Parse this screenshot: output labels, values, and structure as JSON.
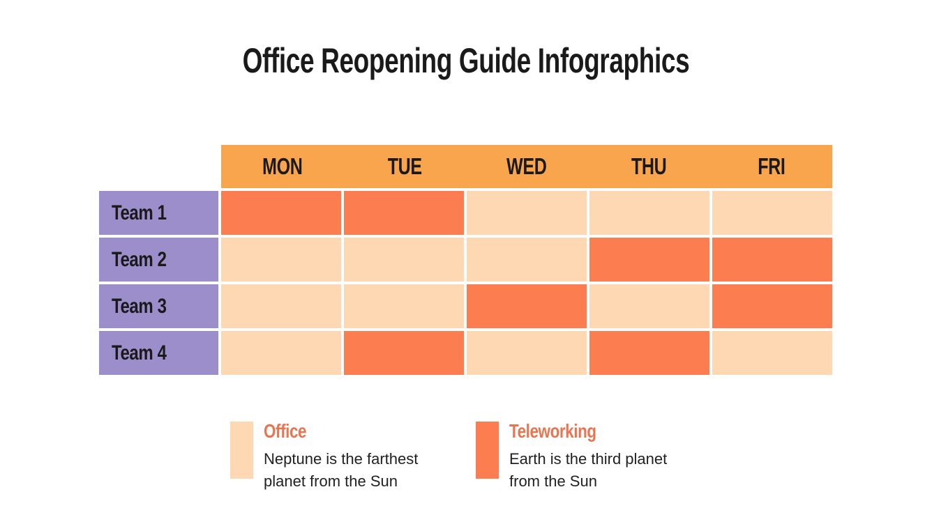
{
  "title": "Office Reopening Guide Infographics",
  "colors": {
    "background": "#FFFFFF",
    "header_bg": "#F9A54E",
    "team_bg": "#9B8ECB",
    "office": "#FDD8B3",
    "teleworking": "#FB7D50",
    "legend_title": "#EB7450",
    "text": "#1A1A1A"
  },
  "chart_data": {
    "type": "table",
    "title": "Office Reopening Guide Infographics",
    "columns": [
      "MON",
      "TUE",
      "WED",
      "THU",
      "FRI"
    ],
    "rows": [
      "Team 1",
      "Team 2",
      "Team 3",
      "Team 4"
    ],
    "cells": [
      [
        "teleworking",
        "teleworking",
        "office",
        "office",
        "office"
      ],
      [
        "office",
        "office",
        "office",
        "teleworking",
        "teleworking"
      ],
      [
        "office",
        "office",
        "teleworking",
        "office",
        "teleworking"
      ],
      [
        "office",
        "teleworking",
        "office",
        "teleworking",
        "office"
      ]
    ],
    "legend_position": "bottom",
    "legend": [
      {
        "key": "office",
        "label": "Office",
        "description": "Neptune is the farthest\nplanet from the Sun",
        "color": "#FDD8B3"
      },
      {
        "key": "teleworking",
        "label": "Teleworking",
        "description": "Earth is the third planet\nfrom the Sun",
        "color": "#FB7D50"
      }
    ]
  }
}
